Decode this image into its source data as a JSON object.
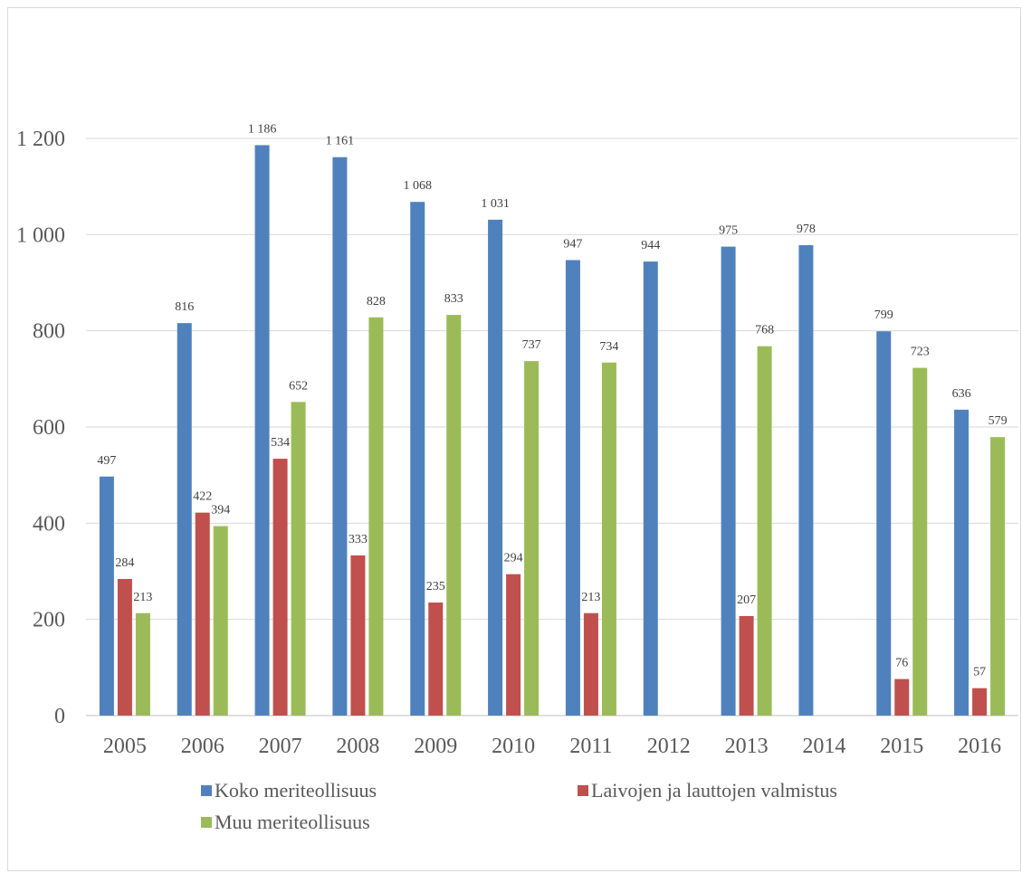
{
  "chart_data": {
    "type": "bar",
    "title": "",
    "xlabel": "",
    "ylabel": "",
    "categories": [
      "2005",
      "2006",
      "2007",
      "2008",
      "2009",
      "2010",
      "2011",
      "2012",
      "2013",
      "2014",
      "2015",
      "2016"
    ],
    "ylim": [
      0,
      1200
    ],
    "yticks": [
      0,
      200,
      400,
      600,
      800,
      1000,
      1200
    ],
    "ytick_labels": [
      "0",
      "200",
      "400",
      "600",
      "800",
      "1 000",
      "1 200"
    ],
    "grid": true,
    "legend_position": "bottom",
    "series": [
      {
        "name": "Koko meriteollisuus",
        "color": "#4f81bd",
        "values": [
          497,
          816,
          1186,
          1161,
          1068,
          1031,
          947,
          944,
          975,
          978,
          799,
          636
        ],
        "labels": [
          "497",
          "816",
          "1 186",
          "1 161",
          "1 068",
          "1 031",
          "947",
          "944",
          "975",
          "978",
          "799",
          "636"
        ]
      },
      {
        "name": "Laivojen ja lauttojen valmistus",
        "color": "#c0504d",
        "values": [
          284,
          422,
          534,
          333,
          235,
          294,
          213,
          null,
          207,
          null,
          76,
          57
        ],
        "labels": [
          "284",
          "422",
          "534",
          "333",
          "235",
          "294",
          "213",
          null,
          "207",
          null,
          "76",
          "57"
        ]
      },
      {
        "name": "Muu meriteollisuus",
        "color": "#9bbb59",
        "values": [
          213,
          394,
          652,
          828,
          833,
          737,
          734,
          null,
          768,
          null,
          723,
          579
        ],
        "labels": [
          "213",
          "394",
          "652",
          "828",
          "833",
          "737",
          "734",
          null,
          "768",
          null,
          "723",
          "579"
        ]
      }
    ]
  }
}
